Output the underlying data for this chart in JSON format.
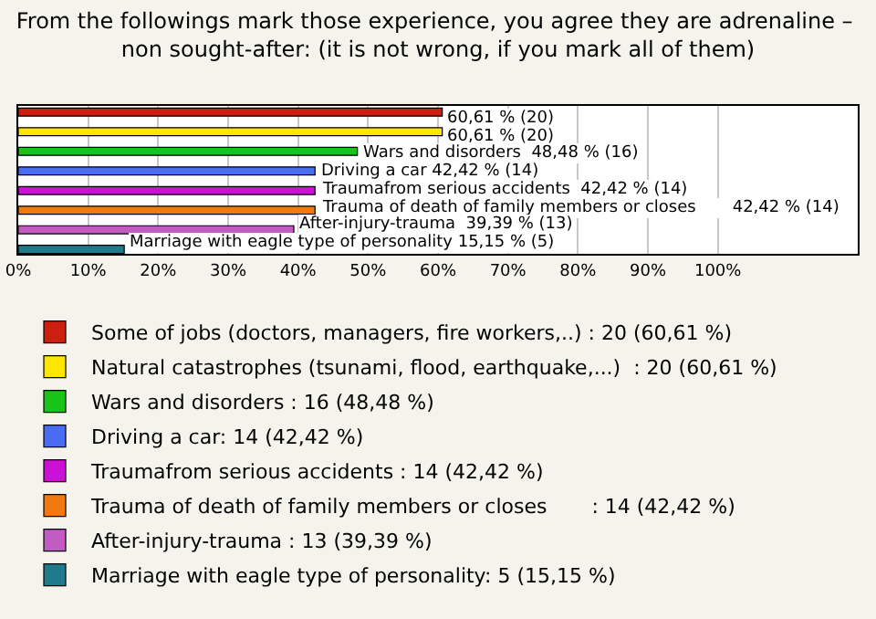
{
  "chart_data": {
    "type": "bar",
    "orientation": "horizontal",
    "title": "From the followings mark those experience, you agree they are adrenaline –  non sought-after: (it is not wrong, if you mark all of them)",
    "categories": [
      null,
      null,
      null,
      null,
      null,
      null,
      null,
      null
    ],
    "series": [
      {
        "name": "Some of jobs (doctors, managers, fire workers,..) : 20 (60,61 %)",
        "color": "#cc1f10",
        "values": [
          60.61,
          null,
          null,
          null,
          null,
          null,
          null,
          null
        ],
        "value_labels": [
          "60,61 % (20)",
          null,
          null,
          null,
          null,
          null,
          null,
          null
        ]
      },
      {
        "name": "Natural catastrophes (tsunami, flood, earthquake,...)  : 20 (60,61 %)",
        "color": "#ffe600",
        "values": [
          null,
          60.61,
          null,
          null,
          null,
          null,
          null,
          null
        ],
        "value_labels": [
          null,
          "60,61 % (20)",
          null,
          null,
          null,
          null,
          null,
          null
        ]
      },
      {
        "name": "Wars and disorders : 16 (48,48 %)",
        "color": "#19c419",
        "values": [
          null,
          null,
          48.48,
          null,
          null,
          null,
          null,
          null
        ],
        "value_labels": [
          null,
          null,
          "Wars and disorders  48,48 % (16)",
          null,
          null,
          null,
          null,
          null
        ]
      },
      {
        "name": "Driving a car: 14 (42,42 %)",
        "color": "#4a6cf2",
        "values": [
          null,
          null,
          null,
          42.42,
          null,
          null,
          null,
          null
        ],
        "value_labels": [
          null,
          null,
          null,
          "Driving a car 42,42 % (14)",
          null,
          null,
          null,
          null
        ]
      },
      {
        "name": "Traumafrom serious accidents : 14 (42,42 %)",
        "color": "#cc10d6",
        "values": [
          null,
          null,
          null,
          null,
          42.42,
          null,
          null,
          null
        ],
        "value_labels": [
          null,
          null,
          null,
          null,
          "Traumafrom serious accidents  42,42 % (14)",
          null,
          null,
          null
        ]
      },
      {
        "name": "Trauma of death of family members or closes       : 14 (42,42 %)",
        "color": "#f07a10",
        "values": [
          null,
          null,
          null,
          null,
          null,
          42.42,
          null,
          null
        ],
        "value_labels": [
          null,
          null,
          null,
          null,
          null,
          "Trauma of death of family members or closes       42,42 % (14)",
          null,
          null
        ]
      },
      {
        "name": "After-injury-trauma : 13 (39,39 %)",
        "color": "#c25cc2",
        "values": [
          null,
          null,
          null,
          null,
          null,
          null,
          39.39,
          null
        ],
        "value_labels": [
          null,
          null,
          null,
          null,
          null,
          null,
          "After-injury-trauma  39,39 % (13)",
          null
        ]
      },
      {
        "name": "Marriage with eagle type of personality: 5 (15,15 %)",
        "color": "#1f7a8c",
        "values": [
          null,
          null,
          null,
          null,
          null,
          null,
          null,
          15.15
        ],
        "value_labels": [
          null,
          null,
          null,
          null,
          null,
          null,
          null,
          "Marriage with eagle type of personality 15,15 % (5)"
        ]
      }
    ],
    "xlim": [
      0,
      120
    ],
    "xticks": [
      {
        "value": 0,
        "label": "0%"
      },
      {
        "value": 10,
        "label": "10%"
      },
      {
        "value": 20,
        "label": "20%"
      },
      {
        "value": 30,
        "label": "30%"
      },
      {
        "value": 40,
        "label": "40%"
      },
      {
        "value": 50,
        "label": "50%"
      },
      {
        "value": 60,
        "label": "60%"
      },
      {
        "value": 70,
        "label": "70%"
      },
      {
        "value": 80,
        "label": "80%"
      },
      {
        "value": 90,
        "label": "90%"
      },
      {
        "value": 100,
        "label": "100%"
      }
    ],
    "grid": "x",
    "legend": "bottom"
  }
}
